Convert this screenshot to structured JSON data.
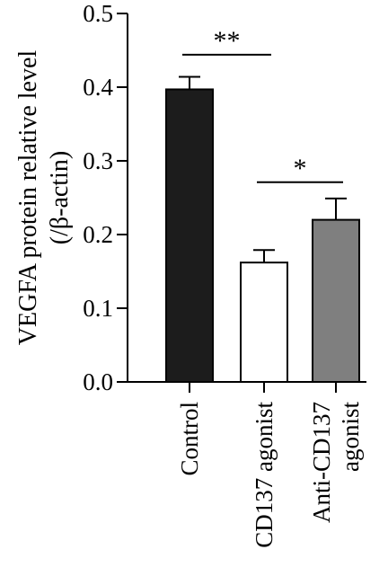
{
  "chart_data": {
    "type": "bar",
    "title": "",
    "xlabel": "",
    "ylabel_lines": [
      "VEGFA protein relative level",
      "(/β-actin)"
    ],
    "ylim": [
      0,
      0.5
    ],
    "yticks": [
      "0.0",
      "0.1",
      "0.2",
      "0.3",
      "0.4",
      "0.5"
    ],
    "categories": [
      {
        "lines": [
          "Control"
        ]
      },
      {
        "lines": [
          "CD137 agonist"
        ]
      },
      {
        "lines": [
          "Anti-CD137",
          "agonist"
        ]
      }
    ],
    "values": [
      0.397,
      0.162,
      0.22
    ],
    "errors": [
      0.017,
      0.017,
      0.029
    ],
    "bar_colors": [
      "#1c1c1c",
      "#ffffff",
      "#7f7f7f"
    ],
    "significance": [
      {
        "from": 0,
        "to": 1,
        "label": "**",
        "y": 0.444
      },
      {
        "from": 1,
        "to": 2,
        "label": "*",
        "y": 0.271
      }
    ]
  }
}
